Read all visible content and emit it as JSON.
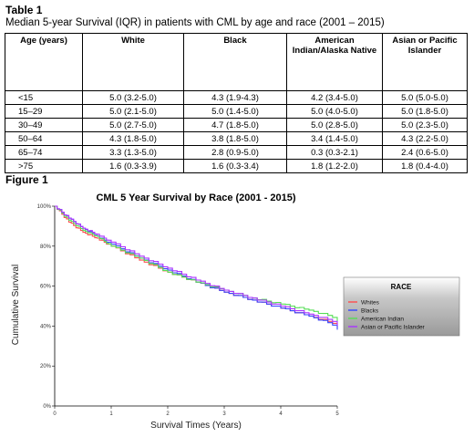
{
  "table": {
    "caption": "Table 1",
    "subtitle": "Median 5-year Survival (IQR) in patients with CML by age and race (2001 – 2015)",
    "headers": [
      "Age (years)",
      "White",
      "Black",
      "American Indian/Alaska Native",
      "Asian or Pacific Islander"
    ],
    "rows": [
      [
        "<15",
        "5.0 (3.2-5.0)",
        "4.3 (1.9-4.3)",
        "4.2 (3.4-5.0)",
        "5.0 (5.0-5.0)"
      ],
      [
        "15–29",
        "5.0 (2.1-5.0)",
        "5.0 (1.4-5.0)",
        "5.0 (4.0-5.0)",
        "5.0 (1.8-5.0)"
      ],
      [
        "30–49",
        "5.0 (2.7-5.0)",
        "4.7 (1.8-5.0)",
        "5.0 (2.8-5.0)",
        "5.0 (2.3-5.0)"
      ],
      [
        "50–64",
        "4.3 (1.8-5.0)",
        "3.8 (1.8-5.0)",
        "3.4 (1.4-5.0)",
        "4.3 (2.2-5.0)"
      ],
      [
        "65–74",
        "3.3 (1.3-5.0)",
        "2.8 (0.9-5.0)",
        "0.3 (0.3-2.1)",
        "2.4 (0.6-5.0)"
      ],
      [
        ">75",
        "1.6 (0.3-3.9)",
        "1.6 (0.3-3.4)",
        "1.8 (1.2-2.0)",
        "1.8 (0.4-4.0)"
      ]
    ]
  },
  "figure": {
    "caption": "Figure 1"
  },
  "chart_data": {
    "type": "line",
    "title": "CML 5 Year Survival by Race (2001 - 2015)",
    "xlabel": "Survival Times (Years)",
    "ylabel": "Cumulative Survival",
    "xlim": [
      0,
      5
    ],
    "ylim": [
      0,
      100
    ],
    "x_ticks": [
      "0",
      "1",
      "2",
      "3",
      "4",
      "5"
    ],
    "y_ticks": [
      "0%",
      "20%",
      "40%",
      "60%",
      "80%",
      "100%"
    ],
    "legend_title": "RACE",
    "legend_position": "right",
    "x": [
      0,
      0.25,
      0.5,
      0.75,
      1,
      1.5,
      2,
      2.5,
      3,
      3.5,
      4,
      4.5,
      5
    ],
    "series": [
      {
        "name": "Whites",
        "color": "#ff4d4d",
        "values": [
          100,
          92,
          87,
          84,
          80,
          73,
          67,
          62,
          57,
          53,
          49,
          45,
          41
        ]
      },
      {
        "name": "Blacks",
        "color": "#3344ff",
        "values": [
          100,
          94,
          89,
          85,
          81,
          74,
          68,
          62,
          57,
          53,
          49,
          45,
          40
        ]
      },
      {
        "name": "American Indian",
        "color": "#55dd55",
        "values": [
          100,
          93,
          88,
          85,
          80,
          74,
          67,
          62,
          58,
          54,
          51,
          48,
          44
        ]
      },
      {
        "name": "Asian or Pacific Islander",
        "color": "#aa33ff",
        "values": [
          100,
          94,
          89,
          86,
          82,
          75,
          69,
          63,
          58,
          54,
          50,
          46,
          42
        ]
      }
    ]
  }
}
